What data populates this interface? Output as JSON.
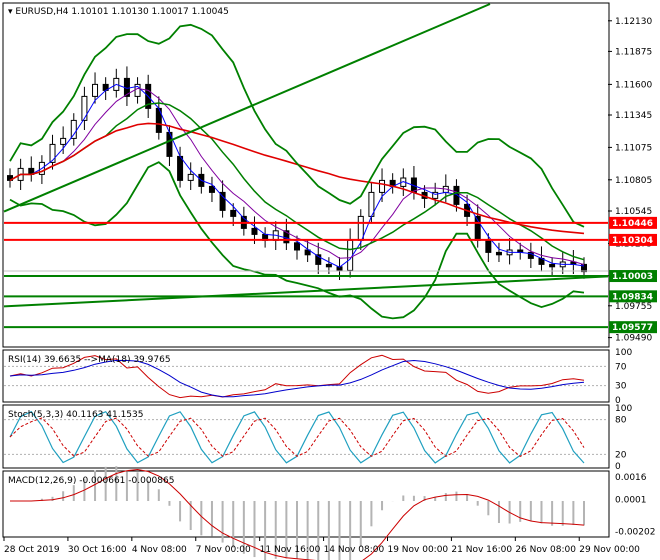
{
  "header": {
    "symbol": "EURUSD,H4",
    "ohlc": "1.10101 1.10130 1.10017 1.10045"
  },
  "colors": {
    "background": "#ffffff",
    "frame": "#000000",
    "grid": "#c8c8c8",
    "bull_candle": "#000000",
    "bear_candle": "#000000",
    "bollinger": "#008000",
    "ma_red": "#e00000",
    "ma_green": "#008000",
    "ma_blue": "#0000ff",
    "ma_purple": "#8000a0",
    "level_red": "#ff0000",
    "level_green": "#008000",
    "rsi_blue": "#0000cc",
    "rsi_red": "#cc0000",
    "stoch_main": "#20a0c0",
    "stoch_signal": "#cc0000",
    "macd_hist": "#b4b4b4",
    "macd_signal": "#cc0000"
  },
  "price_axis": {
    "ticks": [
      "1.12130",
      "1.11875",
      "1.11600",
      "1.11345",
      "1.11075",
      "1.10805",
      "1.10545",
      "1.10275",
      "1.10005",
      "1.09755",
      "1.09490"
    ],
    "ylim": [
      1.0942,
      1.1227
    ]
  },
  "time_axis": {
    "labels": [
      "28 Oct 2019",
      "30 Oct 16:00",
      "4 Nov 08:00",
      "7 Nov 00:00",
      "11 Nov 16:00",
      "14 Nov 08:00",
      "19 Nov 00:00",
      "21 Nov 16:00",
      "26 Nov 08:00",
      "29 Nov 00:00"
    ]
  },
  "price_levels": [
    {
      "value": 1.10446,
      "label": "1.10446",
      "color": "red"
    },
    {
      "value": 1.10304,
      "label": "1.10304",
      "color": "red"
    },
    {
      "value": 1.10003,
      "label": "1.10003",
      "color": "green"
    },
    {
      "value": 1.09834,
      "label": "1.09834",
      "color": "green"
    },
    {
      "value": 1.09577,
      "label": "1.09577",
      "color": "green"
    }
  ],
  "current_price": "1.10045",
  "chart_data": {
    "type": "line",
    "candles_close_path": [
      1.108,
      1.109,
      1.1085,
      1.1095,
      1.111,
      1.1115,
      1.113,
      1.115,
      1.116,
      1.1155,
      1.1165,
      1.115,
      1.116,
      1.114,
      1.112,
      1.11,
      1.108,
      1.1085,
      1.1075,
      1.107,
      1.1055,
      1.105,
      1.104,
      1.1035,
      1.103,
      1.1038,
      1.1028,
      1.1022,
      1.1018,
      1.101,
      1.1008,
      1.1005,
      1.103,
      1.105,
      1.107,
      1.108,
      1.1075,
      1.1082,
      1.107,
      1.1065,
      1.107,
      1.1075,
      1.106,
      1.105,
      1.103,
      1.102,
      1.1018,
      1.1022,
      1.102,
      1.1015,
      1.101,
      1.1008,
      1.1012,
      1.101,
      1.1004
    ],
    "panels": [
      {
        "name": "rsi",
        "label": "RSI(14) 39.6635 -->MA(18) 39.9765",
        "ticks": [
          "100",
          "70",
          "30",
          "0"
        ]
      },
      {
        "name": "stoch",
        "label": "Stoch(5,3,3) 40.1163 41.1535",
        "ticks": [
          "100",
          "80",
          "20",
          "0"
        ]
      },
      {
        "name": "macd",
        "label": "MACD(12,26,9) -0.000661 -0.000865",
        "ticks": [
          "0.0016",
          "0.0001",
          "-0.00202"
        ]
      }
    ],
    "trendlines": [
      {
        "name": "rising-upper",
        "from": [
          "28 Oct 2019",
          1.1054
        ],
        "to": [
          "21 Nov 16:00",
          1.1227
        ]
      },
      {
        "name": "rising-lower",
        "from": [
          "28 Oct 2019",
          1.0975
        ],
        "to": [
          "29 Nov 00:00",
          1.1
        ]
      }
    ]
  }
}
